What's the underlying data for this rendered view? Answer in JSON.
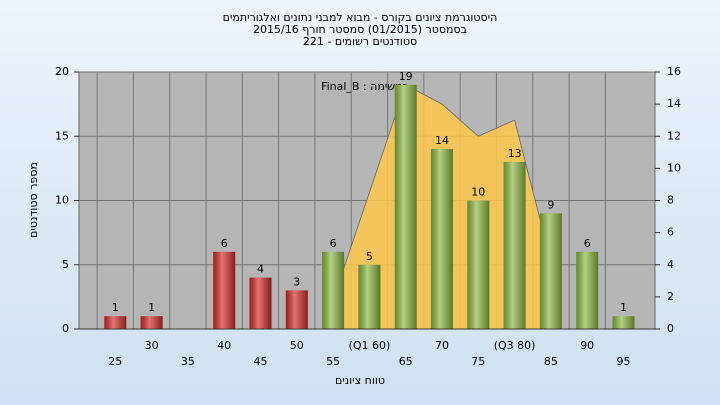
{
  "chart_data": {
    "type": "bar",
    "title": [
      "היסטוגרמת ציונים בקורס - מבוא למבני נתונים ואלגוריתמים",
      "בסמסטר  (01/2015)  סמסטר חורף 2015/16",
      "סטודנטים רשומים - 221"
    ],
    "annotation": "Final_B : במשימה",
    "y_label": "מספר סטודנטים",
    "x_label": "טווח ציונים",
    "categories": [
      "25",
      "30",
      "35",
      "40",
      "45",
      "50",
      "55",
      "(Q1 60)",
      "65",
      "70",
      "75",
      "(Q3 80)",
      "85",
      "90",
      "95"
    ],
    "values": [
      1,
      1,
      0,
      6,
      4,
      3,
      6,
      5,
      19,
      14,
      10,
      13,
      9,
      6,
      1
    ],
    "value_labels": [
      "1",
      "1",
      null,
      "6",
      "4",
      "3",
      "6",
      "5",
      "19",
      "14",
      "10",
      "13",
      "9",
      "6",
      "1"
    ],
    "colors": [
      "#d42a2a",
      "#d42a2a",
      "#d42a2a",
      "#d42a2a",
      "#d42a2a",
      "#d42a2a",
      "#8cb840",
      "#8cb840",
      "#8cb840",
      "#8cb840",
      "#8cb840",
      "#8cb840",
      "#8cb840",
      "#8cb840",
      "#8cb840"
    ],
    "area": {
      "color": "#ffc84a",
      "axis": "y2",
      "values": [
        null,
        null,
        null,
        null,
        null,
        null,
        1.8,
        8.5,
        15.2,
        14,
        12,
        13,
        4.2,
        null,
        null
      ]
    },
    "ylim": [
      0,
      20
    ],
    "yticks": [
      0,
      5,
      10,
      15,
      20
    ],
    "y2lim": [
      0,
      16
    ],
    "y2ticks": [
      0,
      2,
      4,
      6,
      8,
      10,
      12,
      14,
      16
    ],
    "grid": true
  }
}
